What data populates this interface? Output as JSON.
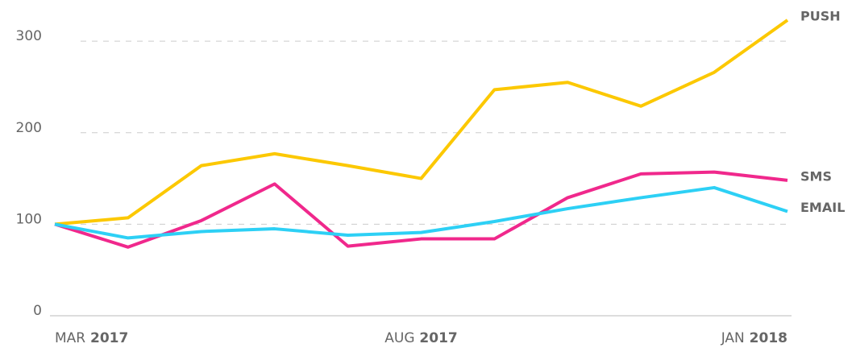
{
  "chart_data": {
    "type": "line",
    "categories": [
      "MAR 2017",
      null,
      null,
      null,
      null,
      "AUG 2017",
      null,
      null,
      null,
      null,
      "JAN 2018"
    ],
    "series": [
      {
        "name": "PUSH",
        "color": "#fcc800",
        "values": [
          100,
          107,
          164,
          177,
          164,
          150,
          247,
          255,
          229,
          266,
          323
        ]
      },
      {
        "name": "SMS",
        "color": "#f0288c",
        "values": [
          100,
          75,
          104,
          144,
          76,
          84,
          84,
          129,
          155,
          157,
          148
        ]
      },
      {
        "name": "EMAIL",
        "color": "#2dd0f5",
        "values": [
          100,
          85,
          92,
          95,
          88,
          91,
          103,
          117,
          129,
          140,
          114
        ]
      }
    ],
    "ylim": [
      0,
      345
    ],
    "yticks": [
      0,
      100,
      200,
      300
    ],
    "grid": true
  }
}
